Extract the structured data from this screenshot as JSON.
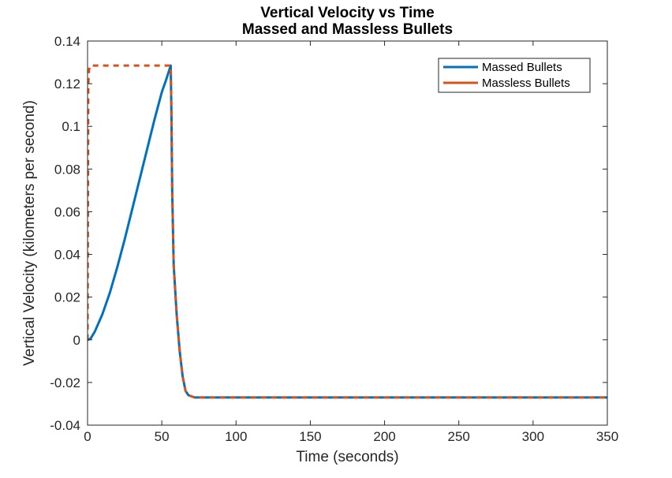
{
  "chart_data": {
    "type": "line",
    "title_line1": "Vertical Velocity vs Time",
    "title_line2": "Massed and Massless Bullets",
    "xlabel": "Time (seconds)",
    "ylabel": "Vertical Velocity (kilometers per second)",
    "xlim": [
      0,
      350
    ],
    "ylim": [
      -0.04,
      0.14
    ],
    "x_ticks": [
      0,
      50,
      100,
      150,
      200,
      250,
      300,
      350
    ],
    "x_tick_labels": [
      "0",
      "50",
      "100",
      "150",
      "200",
      "250",
      "300",
      "350"
    ],
    "y_ticks": [
      -0.04,
      -0.02,
      0,
      0.02,
      0.04,
      0.06,
      0.08,
      0.1,
      0.12,
      0.14
    ],
    "y_tick_labels": [
      "-0.04",
      "-0.02",
      "0",
      "0.02",
      "0.04",
      "0.06",
      "0.08",
      "0.1",
      "0.12",
      "0.14"
    ],
    "grid": false,
    "legend_position": "top-right",
    "series": [
      {
        "name": "Massed Bullets",
        "color": "#0072BD",
        "line_style": "solid",
        "x": [
          0,
          2,
          5,
          10,
          15,
          20,
          25,
          30,
          35,
          40,
          45,
          50,
          53,
          56,
          56.5,
          57,
          58,
          60,
          62,
          64,
          66,
          68,
          72,
          80,
          100,
          150,
          200,
          250,
          300,
          350
        ],
        "y": [
          0,
          0.0005,
          0.004,
          0.012,
          0.022,
          0.034,
          0.047,
          0.061,
          0.075,
          0.089,
          0.103,
          0.116,
          0.122,
          0.1285,
          0.105,
          0.07,
          0.035,
          0.012,
          -0.005,
          -0.017,
          -0.024,
          -0.026,
          -0.027,
          -0.027,
          -0.027,
          -0.027,
          -0.027,
          -0.027,
          -0.027,
          -0.027
        ]
      },
      {
        "name": "Massless Bullets",
        "color": "#D95319",
        "line_style": "solid",
        "x": [
          0,
          0.5,
          1,
          1.5,
          2,
          56,
          56.5,
          57,
          58,
          60,
          62,
          64,
          66,
          68,
          72,
          80,
          100,
          150,
          200,
          250,
          300,
          350
        ],
        "y": [
          0,
          0.12,
          0.1265,
          0.128,
          0.1285,
          0.1285,
          0.105,
          0.07,
          0.035,
          0.012,
          -0.005,
          -0.017,
          -0.024,
          -0.026,
          -0.027,
          -0.027,
          -0.027,
          -0.027,
          -0.027,
          -0.027,
          -0.027,
          -0.027
        ]
      }
    ]
  }
}
